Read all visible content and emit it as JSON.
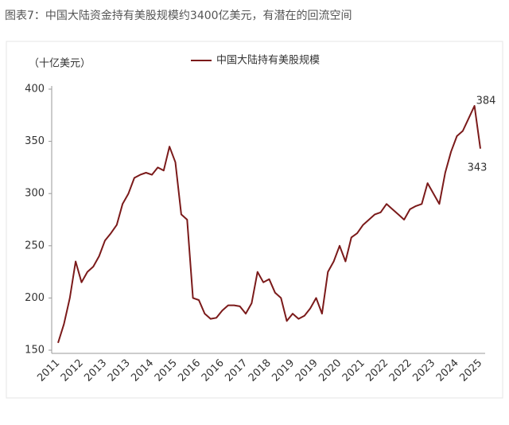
{
  "chart_data": {
    "type": "line",
    "title": "图表7：中国大陆资金持有美股规模约3400亿美元，有潜在的回流空间",
    "y_label": "（十亿美元）",
    "categories": [
      "2011",
      null,
      null,
      null,
      "2012",
      null,
      null,
      null,
      "2013",
      null,
      null,
      null,
      "2013",
      null,
      null,
      null,
      "2014",
      null,
      null,
      null,
      "2015",
      null,
      null,
      null,
      "2016",
      null,
      null,
      null,
      "2016",
      null,
      null,
      null,
      "2017",
      null,
      null,
      null,
      "2018",
      null,
      null,
      null,
      "2019",
      null,
      null,
      null,
      "2019",
      null,
      null,
      null,
      "2020",
      null,
      null,
      null,
      "2021",
      null,
      null,
      null,
      "2022",
      null,
      null,
      null,
      "2022",
      null,
      null,
      null,
      "2023",
      null,
      null,
      null,
      "2024",
      null,
      null,
      null,
      "2025"
    ],
    "series": [
      {
        "name": "中国大陆持有美股规模",
        "color": "#7b1a1a",
        "values": [
          157,
          175,
          200,
          235,
          215,
          225,
          230,
          240,
          255,
          262,
          270,
          290,
          300,
          315,
          318,
          320,
          318,
          325,
          322,
          345,
          330,
          280,
          275,
          200,
          198,
          185,
          180,
          181,
          188,
          193,
          193,
          192,
          185,
          195,
          225,
          215,
          218,
          205,
          200,
          178,
          185,
          180,
          183,
          190,
          200,
          185,
          225,
          235,
          250,
          235,
          258,
          262,
          270,
          275,
          280,
          282,
          290,
          285,
          280,
          275,
          285,
          288,
          290,
          310,
          300,
          290,
          320,
          340,
          355,
          360,
          372,
          384,
          343
        ]
      }
    ],
    "ylim": [
      150,
      400
    ],
    "yticks": [
      150,
      200,
      250,
      300,
      350,
      400
    ],
    "legend": "top"
  }
}
